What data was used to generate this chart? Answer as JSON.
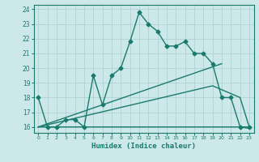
{
  "line1_x": [
    0,
    1,
    2,
    3,
    4,
    5,
    6,
    7,
    8,
    9,
    10,
    11,
    12,
    13,
    14,
    15,
    16,
    17,
    18,
    19,
    20,
    21,
    22,
    23
  ],
  "line1_y": [
    18,
    16,
    16,
    16.5,
    16.5,
    16,
    19.5,
    17.5,
    19.5,
    20,
    21.8,
    23.8,
    23,
    22.5,
    21.5,
    21.5,
    21.8,
    21,
    21,
    20.3,
    18,
    18,
    16,
    16
  ],
  "line2_x": [
    0,
    20
  ],
  "line2_y": [
    16,
    20.3
  ],
  "line3_x": [
    0,
    19,
    22,
    23
  ],
  "line3_y": [
    16,
    18.8,
    18,
    16
  ],
  "line4_x": [
    0,
    22,
    23
  ],
  "line4_y": [
    16,
    16,
    15.9
  ],
  "color": "#1a7a6e",
  "bg_color": "#cce8e8",
  "grid_color": "#aacece",
  "xlabel": "Humidex (Indice chaleur)",
  "xlim": [
    -0.5,
    23.5
  ],
  "ylim": [
    15.6,
    24.3
  ],
  "yticks": [
    16,
    17,
    18,
    19,
    20,
    21,
    22,
    23,
    24
  ],
  "xticks": [
    0,
    1,
    2,
    3,
    4,
    5,
    6,
    7,
    8,
    9,
    10,
    11,
    12,
    13,
    14,
    15,
    16,
    17,
    18,
    19,
    20,
    21,
    22,
    23
  ],
  "marker": "D",
  "markersize": 2.5,
  "linewidth": 1.0
}
